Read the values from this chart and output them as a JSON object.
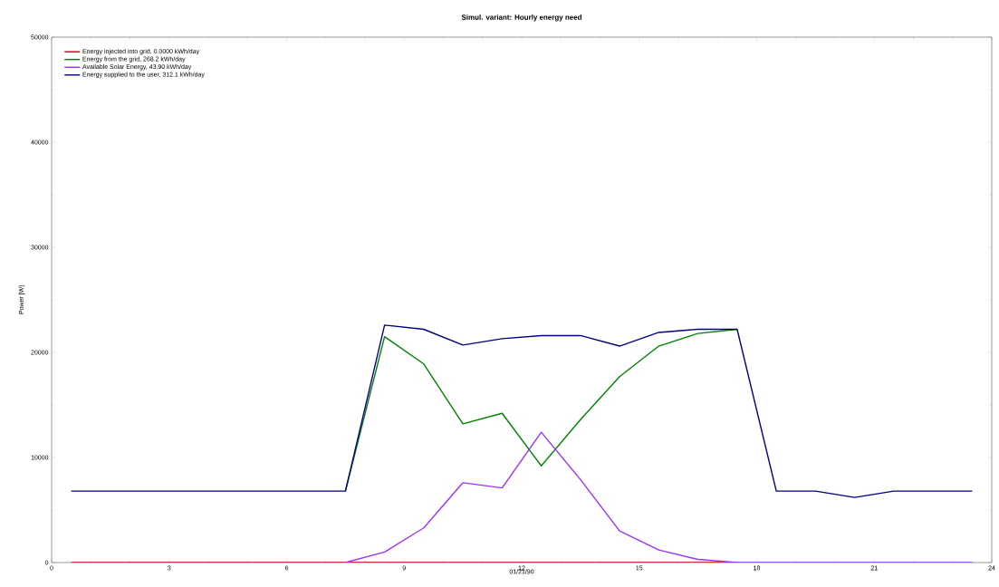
{
  "chart_data": {
    "type": "line",
    "title": "Simul. variant: Hourly energy need",
    "xlabel": "01/21/90",
    "ylabel": "Power  [W]",
    "x": [
      0.5,
      1.5,
      2.5,
      3.5,
      4.5,
      5.5,
      6.5,
      7.5,
      8.5,
      9.5,
      10.5,
      11.5,
      12.5,
      13.5,
      14.5,
      15.5,
      16.5,
      17.5,
      18.5,
      19.5,
      20.5,
      21.5,
      22.5,
      23.5
    ],
    "series": [
      {
        "name": "Energy injected into grid,  0.0000 kWh/day",
        "color": "#c00000",
        "values": [
          0,
          0,
          0,
          0,
          0,
          0,
          0,
          0,
          0,
          0,
          0,
          0,
          0,
          0,
          0,
          0,
          0,
          0,
          null,
          null,
          null,
          null,
          null,
          null
        ]
      },
      {
        "name": "Energy from the grid,  268.2 kWh/day",
        "color": "#008000",
        "values": [
          null,
          null,
          null,
          null,
          null,
          null,
          null,
          6800,
          21500,
          18900,
          13200,
          14200,
          9200,
          13600,
          17700,
          20600,
          21800,
          22200,
          null,
          null,
          null,
          null,
          null,
          null
        ]
      },
      {
        "name": "Available Solar Energy,  43.90 kWh/day",
        "color": "#9933ff",
        "values": [
          null,
          null,
          null,
          null,
          null,
          null,
          null,
          0,
          1000,
          3300,
          7600,
          7100,
          12400,
          7900,
          3000,
          1200,
          300,
          0,
          0,
          0,
          0,
          0,
          0,
          0
        ]
      },
      {
        "name": "Energy supplied to the user,  312.1 kWh/day",
        "color": "#000080",
        "values": [
          6800,
          6800,
          6800,
          6800,
          6800,
          6800,
          6800,
          6800,
          22600,
          22200,
          20700,
          21300,
          21600,
          21600,
          20600,
          21900,
          22200,
          22200,
          6800,
          6800,
          6200,
          6800,
          6800,
          6800
        ]
      }
    ],
    "xlim": [
      0,
      24
    ],
    "xticks": [
      0,
      3,
      6,
      9,
      12,
      15,
      18,
      21,
      24
    ],
    "ylim": [
      0,
      50000
    ],
    "yticks": [
      0,
      10000,
      20000,
      30000,
      40000,
      50000
    ],
    "grid": false,
    "legend": "top left",
    "marker": "none",
    "line_style": "solid"
  }
}
